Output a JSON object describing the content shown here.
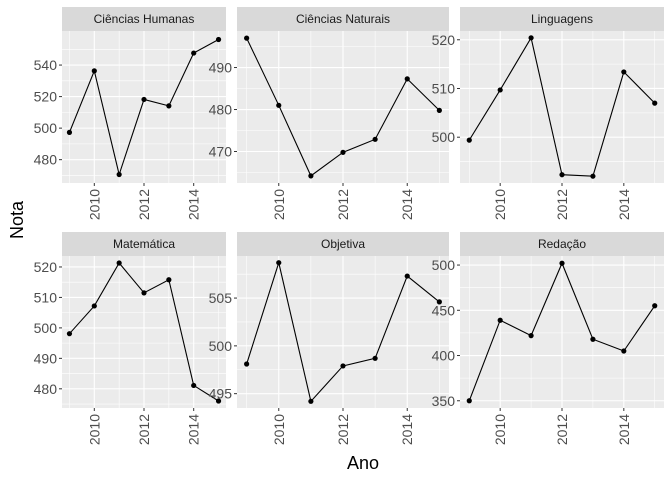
{
  "chart_data": {
    "type": "line",
    "xlabel": "Ano",
    "ylabel": "Nota",
    "x_ticks": [
      "2010",
      "2012",
      "2014"
    ],
    "xlim": [
      2008.7,
      2015.3
    ],
    "colors": {
      "panel_bg": "#ebebeb",
      "grid": "#ffffff",
      "strip_bg": "#d9d9d9",
      "line": "#000000",
      "point": "#000000"
    },
    "panels": [
      {
        "title": "Ciências Humanas",
        "x": [
          2009,
          2010,
          2011,
          2012,
          2013,
          2014,
          2015
        ],
        "values": [
          497.3,
          536.3,
          470.6,
          518.2,
          514.1,
          547.6,
          556.2
        ],
        "ylim": [
          465.2,
          561.6
        ],
        "y_ticks": [
          480,
          500,
          520,
          540
        ]
      },
      {
        "title": "Ciências Naturais",
        "x": [
          2009,
          2010,
          2011,
          2012,
          2013,
          2014,
          2015
        ],
        "values": [
          497.0,
          481.0,
          464.2,
          469.8,
          472.9,
          487.3,
          479.8
        ],
        "ylim": [
          462.5,
          498.7
        ],
        "y_ticks": [
          470,
          480,
          490
        ]
      },
      {
        "title": "Linguagens",
        "x": [
          2009,
          2010,
          2011,
          2012,
          2013,
          2014,
          2015
        ],
        "values": [
          499.4,
          509.7,
          520.4,
          492.3,
          492.0,
          513.4,
          507.0
        ],
        "ylim": [
          490.6,
          521.8
        ],
        "y_ticks": [
          500,
          510,
          520
        ]
      },
      {
        "title": "Matemática",
        "x": [
          2009,
          2010,
          2011,
          2012,
          2013,
          2014,
          2015
        ],
        "values": [
          498.1,
          507.2,
          521.3,
          511.5,
          515.8,
          481.1,
          476.0
        ],
        "ylim": [
          473.7,
          523.6
        ],
        "y_ticks": [
          480,
          490,
          500,
          510,
          520
        ]
      },
      {
        "title": "Objetiva",
        "x": [
          2009,
          2010,
          2011,
          2012,
          2013,
          2014,
          2015
        ],
        "values": [
          498.1,
          508.7,
          494.2,
          497.9,
          498.7,
          507.3,
          504.6
        ],
        "ylim": [
          493.5,
          509.4
        ],
        "y_ticks": [
          495,
          500,
          505
        ]
      },
      {
        "title": "Redação",
        "x": [
          2009,
          2010,
          2011,
          2012,
          2013,
          2014,
          2015
        ],
        "values": [
          350.0,
          439.0,
          422.0,
          502.0,
          418.0,
          405.0,
          455.0
        ],
        "ylim": [
          342.0,
          510.0
        ],
        "y_ticks": [
          350,
          400,
          450,
          500
        ]
      }
    ]
  }
}
